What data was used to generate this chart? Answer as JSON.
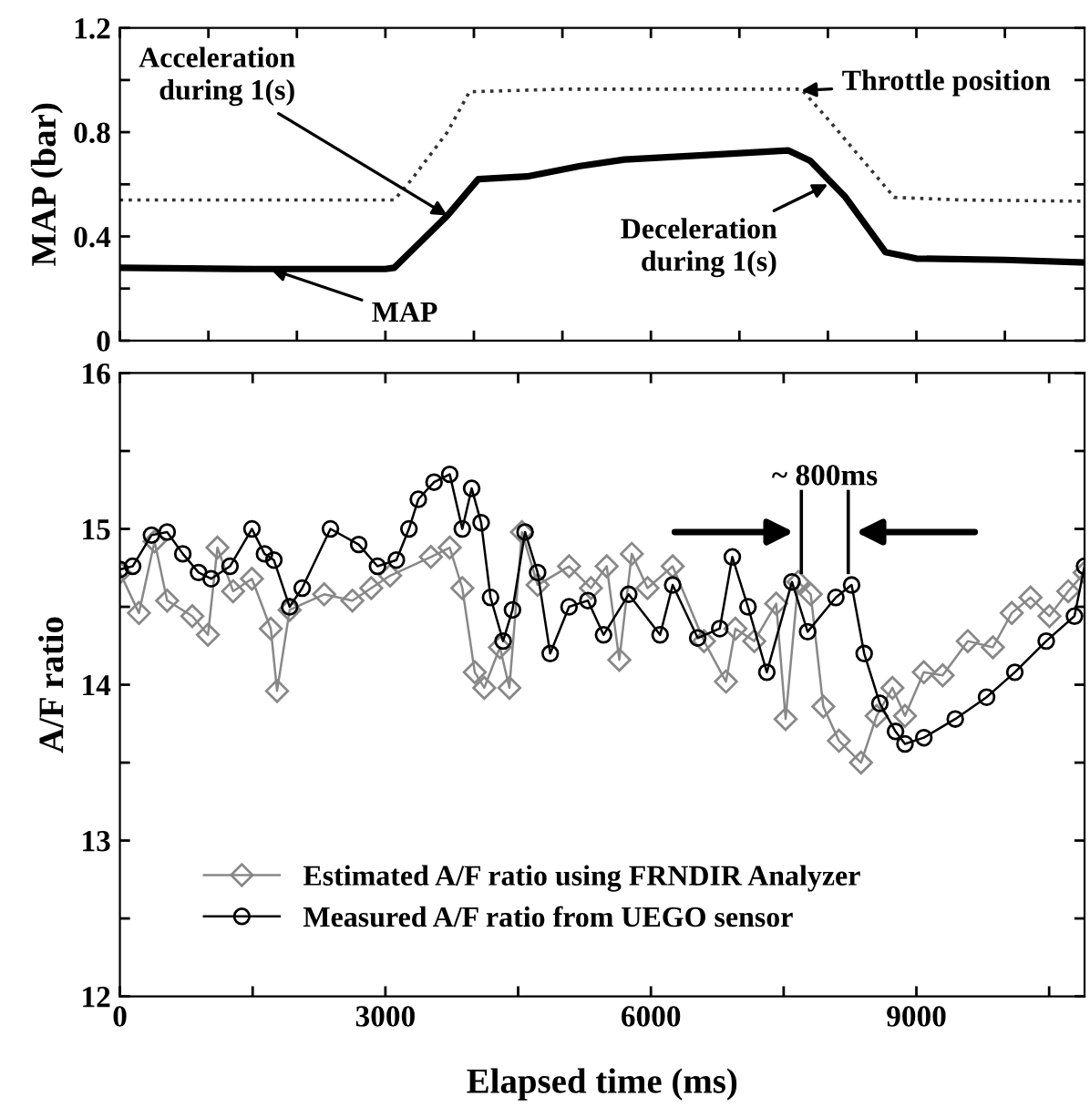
{
  "chart_data": [
    {
      "type": "line",
      "ylabel": "MAP (bar)",
      "xlim": [
        0,
        10900
      ],
      "ylim": [
        0,
        1.2
      ],
      "yticks": [
        0,
        {
          "value": 0.2,
          "label": null
        },
        0.4,
        {
          "value": 0.6,
          "label": null
        },
        0.8,
        {
          "value": 1.0,
          "label": null
        },
        1.2
      ],
      "xticks": [
        {
          "value": 0,
          "label": null
        },
        {
          "value": 1000,
          "label": null
        },
        {
          "value": 2000,
          "label": null
        },
        {
          "value": 3000,
          "label": null
        },
        {
          "value": 4000,
          "label": null
        },
        {
          "value": 5000,
          "label": null
        },
        {
          "value": 6000,
          "label": null
        },
        {
          "value": 7000,
          "label": null
        },
        {
          "value": 8000,
          "label": null
        },
        {
          "value": 9000,
          "label": null
        },
        {
          "value": 10000,
          "label": null
        }
      ],
      "tick_labels": "y",
      "grid": false,
      "legend": false,
      "series": [
        {
          "color": "#000000",
          "line_style": "solid",
          "x": [
            0,
            1500,
            3000,
            3100,
            3400,
            3700,
            4050,
            4600,
            5200,
            5700,
            6500,
            7550,
            7800,
            8200,
            8650,
            9000,
            10000,
            10900
          ],
          "values": [
            0.28,
            0.275,
            0.275,
            0.28,
            0.38,
            0.48,
            0.62,
            0.63,
            0.67,
            0.695,
            0.71,
            0.73,
            0.69,
            0.55,
            0.34,
            0.315,
            0.31,
            0.3
          ]
        },
        {
          "color": "#333333",
          "line_style": "dotted",
          "x": [
            0,
            3100,
            3300,
            3700,
            3950,
            5000,
            6500,
            7700,
            8000,
            8500,
            8750,
            9500,
            10900
          ],
          "values": [
            0.54,
            0.54,
            0.62,
            0.8,
            0.955,
            0.965,
            0.965,
            0.965,
            0.85,
            0.65,
            0.55,
            0.54,
            0.535
          ]
        }
      ],
      "annotations": [
        {
          "text": "Acceleration\nduring 1(s)",
          "x": 3700,
          "y": 0.48
        },
        {
          "text": "Throttle position",
          "x": 7700,
          "y": 0.96
        },
        {
          "text": "Deceleration\nduring 1(s)",
          "x": 8000,
          "y": 0.6
        },
        {
          "text": "MAP",
          "x": 1700,
          "y": 0.275
        }
      ]
    },
    {
      "type": "line",
      "xlabel": "Elapsed time (ms)",
      "ylabel": "A/F ratio",
      "xlim": [
        0,
        10900
      ],
      "ylim": [
        12,
        16
      ],
      "xticks": [
        0,
        {
          "value": 1500,
          "label": null
        },
        3000,
        {
          "value": 4500,
          "label": null
        },
        6000,
        {
          "value": 7500,
          "label": null
        },
        9000,
        {
          "value": 10500,
          "label": null
        }
      ],
      "yticks": [
        12,
        {
          "value": 12.5,
          "label": null
        },
        13,
        {
          "value": 13.5,
          "label": null
        },
        14,
        {
          "value": 14.5,
          "label": null
        },
        15,
        {
          "value": 15.5,
          "label": null
        },
        16
      ],
      "grid": false,
      "legend": "bottom left",
      "series": [
        {
          "name": "Estimated A/F ratio using FRNDIR Analyzer",
          "color": "#888888",
          "marker": "diamond",
          "x": [
            0,
            215,
            392,
            534,
            818,
            995,
            1102,
            1279,
            1492,
            1705,
            1776,
            1918,
            2308,
            2627,
            2840,
            3053,
            3514,
            3727,
            3869,
            4010,
            4117,
            4294,
            4401,
            4543,
            4720,
            5075,
            5323,
            5501,
            5643,
            5784,
            5962,
            6246,
            6600,
            6848,
            6955,
            7168,
            7416,
            7522,
            7665,
            7806,
            7948,
            8125,
            8374,
            8551,
            8729,
            8871,
            9084,
            9297,
            9581,
            9864,
            10077,
            10290,
            10503,
            10716,
            10900
          ],
          "values": [
            14.72,
            14.46,
            14.92,
            14.54,
            14.44,
            14.32,
            14.88,
            14.6,
            14.68,
            14.36,
            13.96,
            14.48,
            14.58,
            14.54,
            14.62,
            14.7,
            14.82,
            14.88,
            14.62,
            14.08,
            13.98,
            14.24,
            13.98,
            14.98,
            14.64,
            14.76,
            14.62,
            14.76,
            14.16,
            14.84,
            14.62,
            14.76,
            14.28,
            14.02,
            14.36,
            14.28,
            14.52,
            13.78,
            14.66,
            14.58,
            13.86,
            13.64,
            13.5,
            13.8,
            13.98,
            13.8,
            14.08,
            14.06,
            14.28,
            14.24,
            14.46,
            14.56,
            14.44,
            14.6,
            14.72
          ]
        },
        {
          "name": "Measured A/F ratio from UEGO sensor",
          "color": "#000000",
          "marker": "circle",
          "x": [
            0,
            144,
            357,
            534,
            711,
            889,
            1031,
            1244,
            1492,
            1634,
            1740,
            1918,
            2060,
            2379,
            2698,
            2911,
            3124,
            3266,
            3372,
            3550,
            3727,
            3869,
            3975,
            4082,
            4188,
            4330,
            4436,
            4578,
            4720,
            4862,
            5075,
            5288,
            5465,
            5749,
            6104,
            6246,
            6529,
            6778,
            6920,
            7097,
            7310,
            7594,
            7771,
            8090,
            8268,
            8410,
            8587,
            8764,
            8871,
            9084,
            9439,
            9793,
            10112,
            10467,
            10786,
            10900
          ],
          "values": [
            14.74,
            14.76,
            14.96,
            14.98,
            14.84,
            14.72,
            14.68,
            14.76,
            15.0,
            14.84,
            14.8,
            14.5,
            14.62,
            15.0,
            14.9,
            14.76,
            14.8,
            15.0,
            15.19,
            15.3,
            15.35,
            15.0,
            15.26,
            15.04,
            14.56,
            14.28,
            14.48,
            14.98,
            14.72,
            14.2,
            14.5,
            14.54,
            14.32,
            14.58,
            14.32,
            14.64,
            14.3,
            14.36,
            14.82,
            14.5,
            14.08,
            14.66,
            14.34,
            14.56,
            14.64,
            14.2,
            13.88,
            13.7,
            13.62,
            13.66,
            13.78,
            13.92,
            14.08,
            14.28,
            14.44,
            14.76
          ]
        }
      ],
      "ref_lines": [
        {
          "axis": "x",
          "value": 7700
        },
        {
          "axis": "x",
          "value": 8230
        }
      ],
      "annotations": [
        "~ 800ms"
      ]
    }
  ]
}
